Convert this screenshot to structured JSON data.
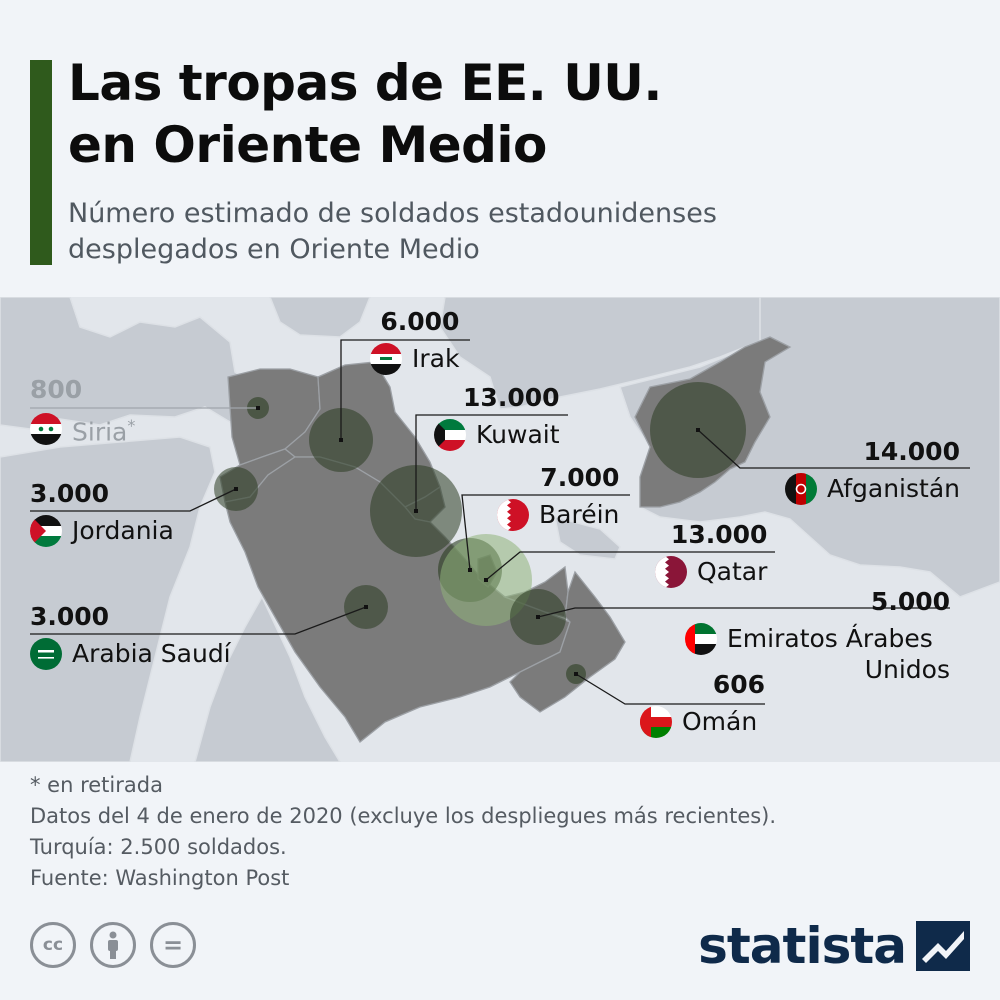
{
  "header": {
    "title_line1": "Las tropas de EE. UU.",
    "title_line2": "en Oriente Medio",
    "subtitle_line1": "Número estimado de soldados estadounidenses",
    "subtitle_line2": "desplegados en Oriente Medio"
  },
  "colors": {
    "accent": "#2f5a1c",
    "land_highlight": "#7b7b7b",
    "land_background": "#c6cbd2",
    "sea": "#e2e6eb",
    "bubble_dark": "#2b3d22",
    "bubble_light": "#8fb37a",
    "brand": "#0f2a4a"
  },
  "deployments": [
    {
      "country": "Irak",
      "value": "6.000",
      "troops": 6000,
      "flag": "iraq-flag-icon"
    },
    {
      "country": "Siria",
      "marker": "*",
      "value": "800",
      "troops": 800,
      "flag": "syria-flag-icon",
      "muted": true
    },
    {
      "country": "Kuwait",
      "value": "13.000",
      "troops": 13000,
      "flag": "kuwait-flag-icon"
    },
    {
      "country": "Afganistán",
      "value": "14.000",
      "troops": 14000,
      "flag": "afghanistan-flag-icon"
    },
    {
      "country": "Baréin",
      "value": "7.000",
      "troops": 7000,
      "flag": "bahrain-flag-icon"
    },
    {
      "country": "Jordania",
      "value": "3.000",
      "troops": 3000,
      "flag": "jordan-flag-icon"
    },
    {
      "country": "Qatar",
      "value": "13.000",
      "troops": 13000,
      "flag": "qatar-flag-icon"
    },
    {
      "country": "Emiratos Árabes",
      "country_line2": "Unidos",
      "value": "5.000",
      "troops": 5000,
      "flag": "uae-flag-icon"
    },
    {
      "country": "Arabia Saudí",
      "value": "3.000",
      "troops": 3000,
      "flag": "saudi-flag-icon"
    },
    {
      "country": "Omán",
      "value": "606",
      "troops": 606,
      "flag": "oman-flag-icon"
    }
  ],
  "footer": {
    "note1": "* en retirada",
    "note2": "Datos del 4 de enero de 2020 (excluye los despliegues más recientes).",
    "note3": "Turquía: 2.500 soldados.",
    "note4": "Fuente: Washington Post",
    "brand": "statista",
    "license_icons": [
      "cc-icon",
      "by-icon",
      "nd-icon"
    ],
    "cc_label": "cc",
    "nd_label": "="
  }
}
